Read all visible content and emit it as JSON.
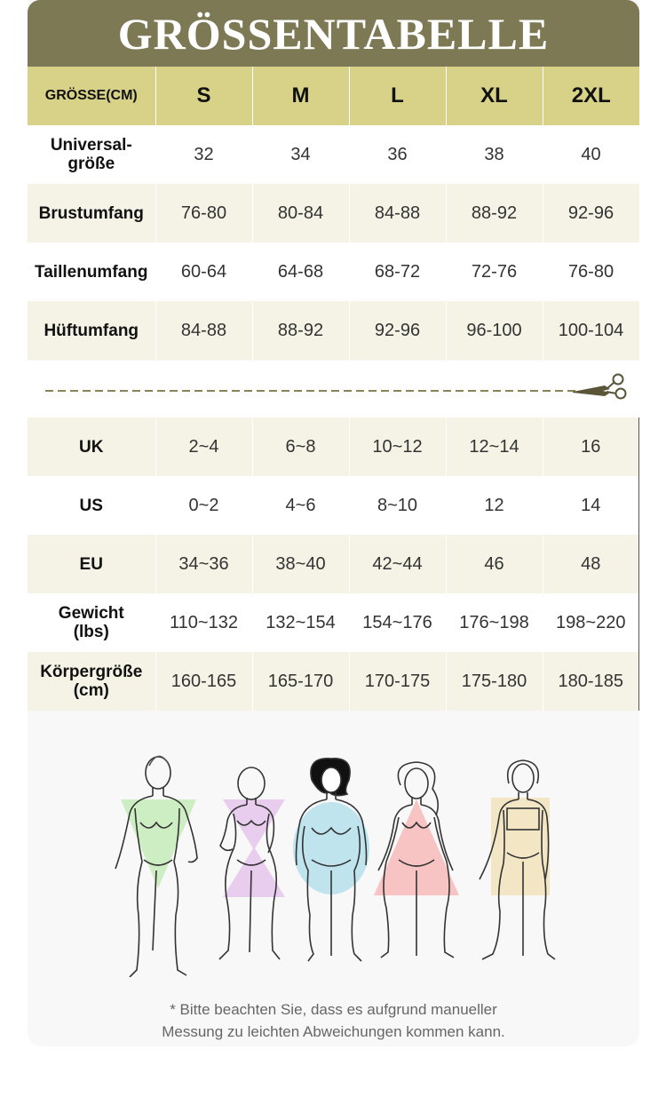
{
  "title": "GRÖSSENTABELLE",
  "sizes_header": "GRÖSSE(CM)",
  "sizes": [
    "S",
    "M",
    "L",
    "XL",
    "2XL"
  ],
  "measurements": [
    {
      "label": "Universal-\ngröße",
      "values": [
        "32",
        "34",
        "36",
        "38",
        "40"
      ]
    },
    {
      "label": "Brustumfang",
      "values": [
        "76-80",
        "80-84",
        "84-88",
        "88-92",
        "92-96"
      ]
    },
    {
      "label": "Taillenumfang",
      "values": [
        "60-64",
        "64-68",
        "68-72",
        "72-76",
        "76-80"
      ]
    },
    {
      "label": "Hüftumfang",
      "values": [
        "84-88",
        "88-92",
        "92-96",
        "96-100",
        "100-104"
      ]
    }
  ],
  "conversions": [
    {
      "label": "UK",
      "values": [
        "2~4",
        "6~8",
        "10~12",
        "12~14",
        "16"
      ]
    },
    {
      "label": "US",
      "values": [
        "0~2",
        "4~6",
        "8~10",
        "12",
        "14"
      ]
    },
    {
      "label": "EU",
      "values": [
        "34~36",
        "38~40",
        "42~44",
        "46",
        "48"
      ]
    },
    {
      "label": "Gewicht\n(lbs)",
      "values": [
        "110~132",
        "132~154",
        "154~176",
        "176~198",
        "198~220"
      ]
    },
    {
      "label": "Körpergröße\n(cm)",
      "values": [
        "160-165",
        "165-170",
        "170-175",
        "175-180",
        "180-185"
      ]
    }
  ],
  "body_shapes": [
    {
      "shape": "v-shape",
      "color": "#cdeec3"
    },
    {
      "shape": "hourglass",
      "color": "#e8cdee"
    },
    {
      "shape": "oval",
      "color": "#bfe4ee"
    },
    {
      "shape": "triangle",
      "color": "#f7c3c3"
    },
    {
      "shape": "rectangle",
      "color": "#f3e6c4"
    }
  ],
  "colors": {
    "title_bg": "#7e7955",
    "header_bg": "#d7d288",
    "row_alt": "#f5f3e6"
  },
  "note": {
    "line1": "* Bitte beachten Sie, dass es aufgrund manueller",
    "line2": "Messung zu leichten Abweichungen kommen kann."
  },
  "icons": {
    "cut": "scissors-icon"
  }
}
